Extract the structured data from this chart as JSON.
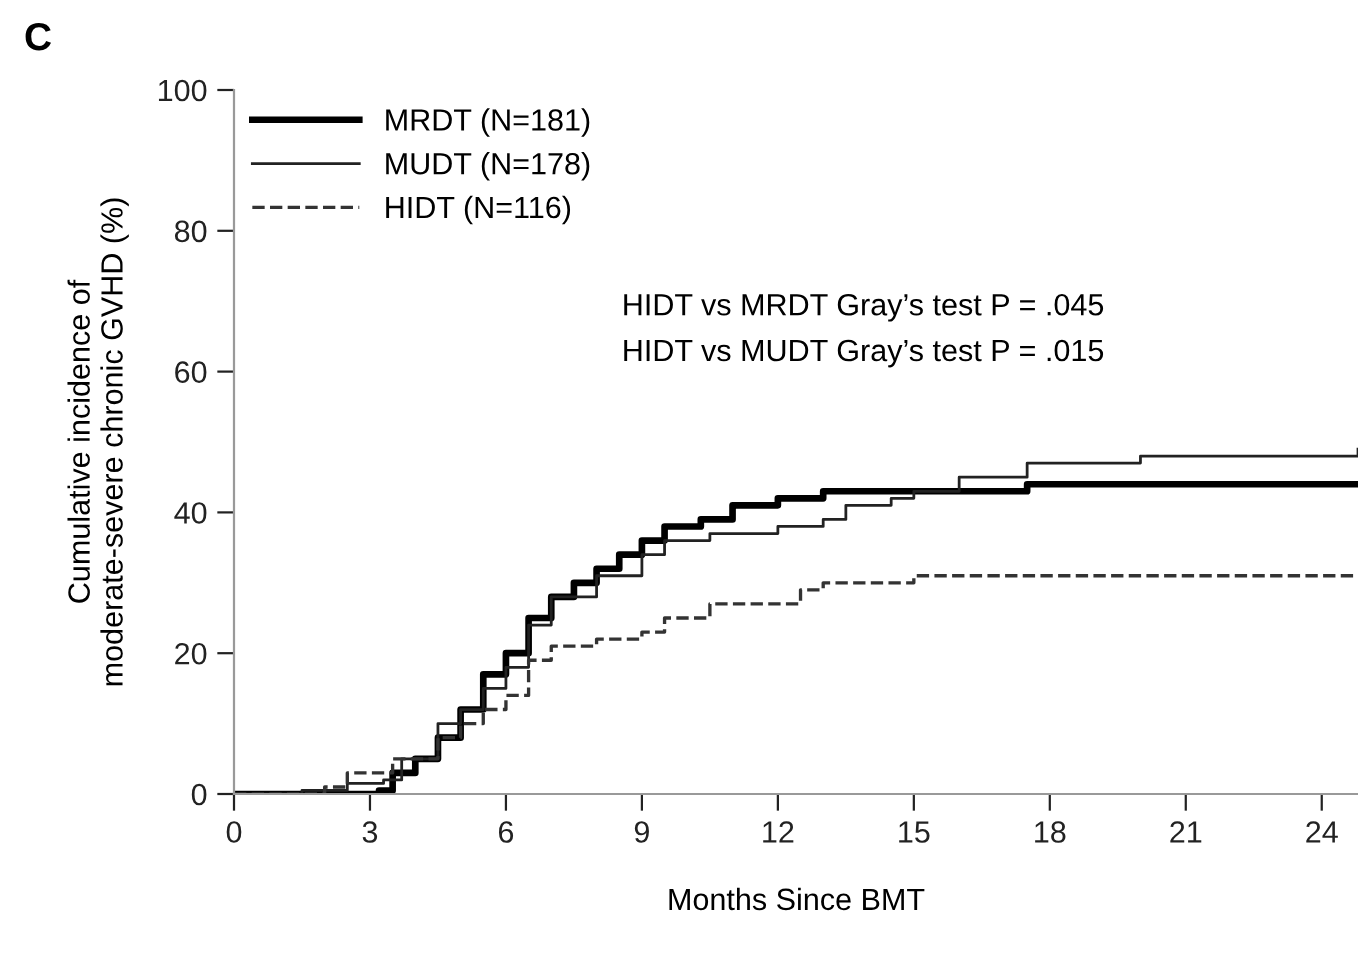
{
  "chart_data": {
    "type": "step",
    "title": "C",
    "xlabel": "Months Since BMT",
    "ylabel": "Cumulative incidence of\nmoderate-severe chronic GVHD (%)",
    "annotations": [
      "HIDT vs MRDT Gray’s test P = .045",
      "HIDT vs MUDT Gray’s test P = .015"
    ],
    "series": [
      {
        "name": "MRDT (N=181)",
        "color": "#000000",
        "line_style": "solid",
        "x": [
          0,
          2,
          3.2,
          3.5,
          4,
          4.5,
          5,
          5.5,
          6,
          6.5,
          7,
          7.5,
          8,
          8.5,
          9,
          9.5,
          10.3,
          11,
          12,
          13,
          15,
          17.5,
          24.8
        ],
        "values": [
          0,
          0,
          0.5,
          3,
          5,
          8,
          12,
          17,
          20,
          25,
          28,
          30,
          32,
          34,
          36,
          38,
          39,
          41,
          42,
          43,
          43,
          44,
          44
        ]
      },
      {
        "name": "MUDT (N=178)",
        "color": "#222222",
        "line_style": "solid",
        "x": [
          0,
          1.5,
          2.5,
          3.3,
          3.7,
          4.5,
          5,
          5.5,
          6,
          6.5,
          7,
          8,
          9,
          9.5,
          10.5,
          12,
          13,
          13.5,
          14.5,
          15,
          16,
          17.5,
          20,
          24.8
        ],
        "values": [
          0,
          0.5,
          1.5,
          2,
          5,
          10,
          12,
          15,
          18,
          24,
          28,
          31,
          34,
          36,
          37,
          38,
          39,
          41,
          42,
          43,
          45,
          47,
          48,
          49
        ]
      },
      {
        "name": "HIDT (N=116)",
        "color": "#333333",
        "line_style": "dashed",
        "x": [
          0,
          2,
          2.5,
          3.3,
          3.5,
          4.5,
          5,
          5.5,
          6,
          6.5,
          7,
          8,
          9,
          9.5,
          10.5,
          12.5,
          13,
          15,
          24.8
        ],
        "values": [
          0,
          1,
          3,
          3,
          5,
          8,
          10,
          12,
          14,
          19,
          21,
          22,
          23,
          25,
          27,
          29,
          30,
          31,
          31
        ]
      }
    ],
    "xlim": [
      0,
      24.8
    ],
    "xticks": [
      0,
      3,
      6,
      9,
      12,
      15,
      18,
      21,
      24
    ],
    "ylim": [
      0,
      100
    ],
    "yticks": [
      0,
      20,
      40,
      60,
      80,
      100
    ],
    "grid": false,
    "legend": "top left"
  }
}
